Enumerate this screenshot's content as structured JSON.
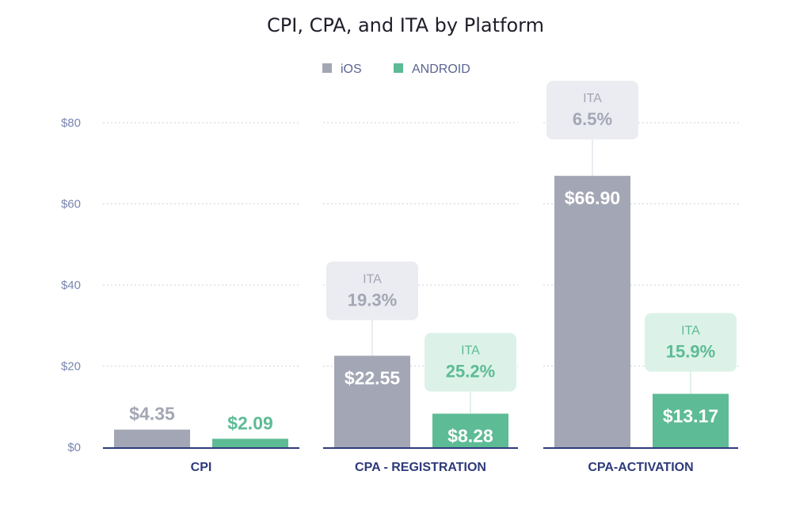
{
  "chart_data": {
    "type": "bar",
    "title": "CPI, CPA, and ITA by Platform",
    "categories": [
      "CPI",
      "CPA - REGISTRATION",
      "CPA-ACTIVATION"
    ],
    "series": [
      {
        "name": "iOS",
        "color": "#a3a6b4",
        "values": [
          4.35,
          22.55,
          66.9
        ],
        "labels": [
          "$4.35",
          "$22.55",
          "$66.90"
        ]
      },
      {
        "name": "ANDROID",
        "color": "#5dbb95",
        "values": [
          2.09,
          8.28,
          13.17
        ],
        "labels": [
          "$2.09",
          "$8.28",
          "$13.17"
        ]
      }
    ],
    "ita": {
      "label": "ITA",
      "iOS": [
        null,
        "19.3%",
        "6.5%"
      ],
      "ANDROID": [
        null,
        "25.2%",
        "15.9%"
      ]
    },
    "ylim": [
      0,
      80
    ],
    "yticks": [
      0,
      20,
      40,
      60,
      80
    ],
    "ytick_labels": [
      "$0",
      "$20",
      "$40",
      "$60",
      "$80"
    ],
    "grid": true,
    "legend": "top-center",
    "xlabel": "",
    "ylabel": ""
  }
}
